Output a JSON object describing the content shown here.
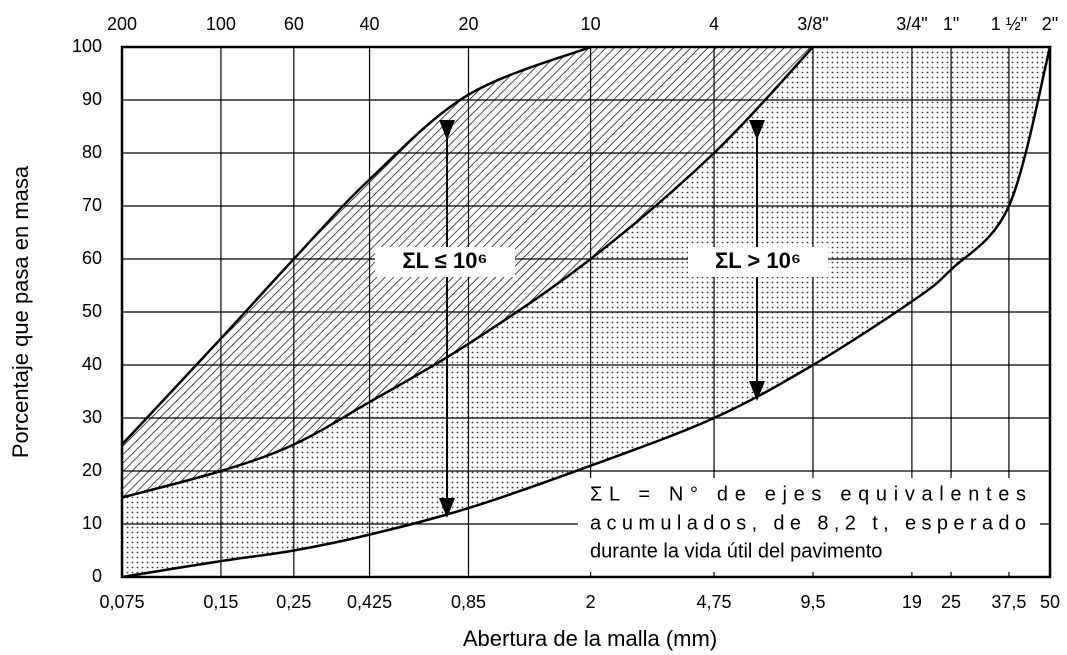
{
  "chart_data": {
    "type": "line",
    "xlabel": "Abertura de la malla (mm)",
    "ylabel": "Porcentaje que pasa en masa",
    "xscale": "log",
    "grid": true,
    "xlim": [
      0.075,
      50
    ],
    "ylim": [
      0,
      100
    ],
    "yticks": [
      0,
      10,
      20,
      30,
      40,
      50,
      60,
      70,
      80,
      90,
      100
    ],
    "xticks": [
      {
        "value": 0.075,
        "label": "0,075"
      },
      {
        "value": 0.15,
        "label": "0,15"
      },
      {
        "value": 0.25,
        "label": "0,25"
      },
      {
        "value": 0.425,
        "label": "0,425"
      },
      {
        "value": 0.85,
        "label": "0,85"
      },
      2,
      {
        "value": 4.75,
        "label": "4,75"
      },
      {
        "value": 9.5,
        "label": "9,5"
      },
      19,
      25,
      {
        "value": 37.5,
        "label": "37,5"
      },
      50
    ],
    "x2ticks": [
      {
        "value": 0.075,
        "label": "200"
      },
      {
        "value": 0.15,
        "label": "100"
      },
      {
        "value": 0.25,
        "label": "60"
      },
      {
        "value": 0.425,
        "label": "40"
      },
      {
        "value": 0.85,
        "label": "20"
      },
      {
        "value": 2,
        "label": "10"
      },
      {
        "value": 4.75,
        "label": "4"
      },
      {
        "value": 9.5,
        "label": "3/8\""
      },
      {
        "value": 19,
        "label": "3/4\""
      },
      {
        "value": 25,
        "label": "1\""
      },
      {
        "value": 37.5,
        "label": "1 ½\""
      },
      {
        "value": 50,
        "label": "2\""
      }
    ],
    "series": [
      {
        "color": "#000000",
        "x": [
          0.075,
          0.15,
          0.25,
          0.425,
          0.85,
          2
        ],
        "values": [
          25,
          45,
          60,
          75,
          91,
          100
        ]
      },
      {
        "color": "#000000",
        "x": [
          0.075,
          0.15,
          0.25,
          0.425,
          0.85,
          2,
          4.75,
          9.5
        ],
        "values": [
          15,
          20,
          25,
          33,
          44,
          60,
          80,
          100
        ]
      },
      {
        "color": "#000000",
        "x": [
          0.075,
          0.15,
          0.25,
          0.425,
          0.85,
          2,
          4.75,
          9.5,
          19,
          25,
          37.5,
          50
        ],
        "values": [
          0,
          3,
          5,
          8,
          13,
          21,
          30,
          40,
          52,
          58,
          70,
          100
        ]
      }
    ],
    "annotations": [
      "ΣL ≤ 10⁶",
      "ΣL > 10⁶"
    ],
    "note": [
      "ΣL = N° de ejes equivalentes",
      "acumulados, de 8,2 t, esperado",
      "durante la vida útil del pavimento"
    ]
  }
}
